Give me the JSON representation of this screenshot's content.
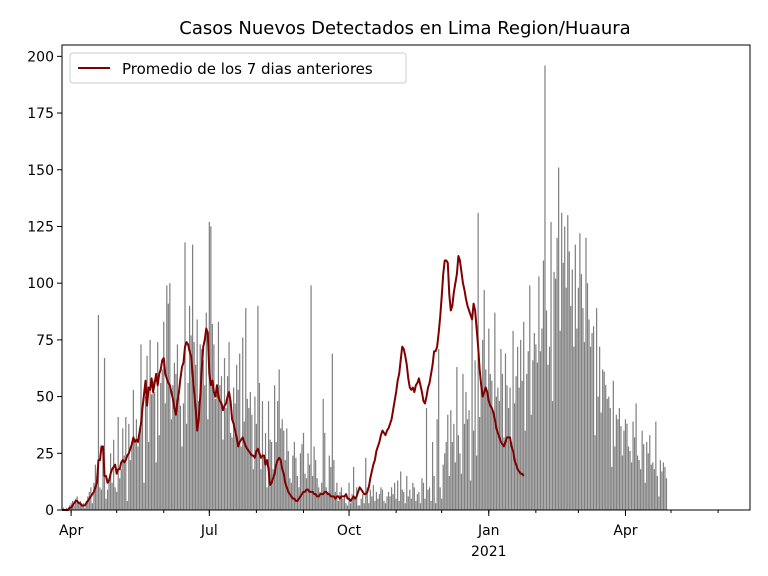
{
  "chart_data": {
    "type": "bar",
    "title": "Casos Nuevos Detectados en Lima Region/Huaura",
    "xlabel": "",
    "ylabel": "",
    "x_range": [
      "2020-03-26",
      "2021-06-22"
    ],
    "ylim": [
      0,
      205
    ],
    "yticks": [
      0,
      25,
      50,
      75,
      100,
      125,
      150,
      175,
      200
    ],
    "xticks": [
      {
        "date": "2020-04-01",
        "label": "Apr",
        "sublabel": ""
      },
      {
        "date": "2020-07-01",
        "label": "Jul",
        "sublabel": ""
      },
      {
        "date": "2020-10-01",
        "label": "Oct",
        "sublabel": ""
      },
      {
        "date": "2021-01-01",
        "label": "Jan",
        "sublabel": "2021"
      },
      {
        "date": "2021-04-01",
        "label": "Apr",
        "sublabel": ""
      }
    ],
    "grid": false,
    "legend": {
      "position": "top-left",
      "entries": [
        "Promedio de los 7 dias anteriores"
      ]
    },
    "colors": {
      "bars": "#808080",
      "line": "#800000"
    },
    "series": [
      {
        "kind": "bar",
        "start_date": "2020-03-26",
        "values": [
          0,
          1,
          0,
          1,
          0,
          2,
          3,
          4,
          2,
          5,
          6,
          3,
          4,
          2,
          3,
          1,
          4,
          6,
          8,
          10,
          3,
          12,
          20,
          15,
          86,
          10,
          9,
          28,
          67,
          5,
          9,
          14,
          25,
          12,
          31,
          10,
          8,
          41,
          14,
          18,
          36,
          24,
          41,
          4,
          38,
          22,
          30,
          53,
          31,
          40,
          28,
          36,
          73,
          46,
          12,
          50,
          68,
          30,
          75,
          51,
          57,
          52,
          21,
          74,
          33,
          56,
          62,
          83,
          47,
          99,
          91,
          100,
          40,
          55,
          65,
          60,
          73,
          50,
          46,
          28,
          47,
          118,
          38,
          56,
          90,
          77,
          117,
          74,
          64,
          84,
          48,
          73,
          71,
          66,
          55,
          87,
          40,
          127,
          125,
          82,
          73,
          49,
          51,
          83,
          55,
          59,
          31,
          67,
          45,
          59,
          74,
          34,
          32,
          54,
          47,
          64,
          53,
          69,
          28,
          76,
          39,
          89,
          49,
          45,
          52,
          42,
          18,
          50,
          38,
          90,
          56,
          18,
          48,
          23,
          34,
          10,
          48,
          31,
          30,
          18,
          55,
          30,
          48,
          62,
          36,
          40,
          35,
          22,
          36,
          26,
          14,
          12,
          24,
          30,
          23,
          15,
          10,
          25,
          29,
          34,
          16,
          14,
          25,
          20,
          99,
          15,
          28,
          22,
          14,
          10,
          8,
          12,
          49,
          34,
          10,
          8,
          24,
          19,
          69,
          22,
          8,
          12,
          4,
          8,
          10,
          5,
          6,
          3,
          2,
          12,
          3,
          7,
          19,
          5,
          10,
          2,
          2,
          5,
          7,
          3,
          23,
          10,
          3,
          9,
          6,
          11,
          4,
          8,
          5,
          7,
          10,
          9,
          4,
          3,
          6,
          8,
          6,
          10,
          7,
          12,
          5,
          13,
          4,
          17,
          9,
          8,
          3,
          15,
          6,
          9,
          5,
          12,
          10,
          4,
          7,
          8,
          3,
          14,
          12,
          5,
          45,
          9,
          10,
          4,
          30,
          15,
          3,
          40,
          71,
          10,
          5,
          20,
          25,
          30,
          42,
          15,
          44,
          30,
          38,
          21,
          63,
          33,
          25,
          16,
          60,
          38,
          52,
          40,
          44,
          13,
          84,
          35,
          66,
          24,
          131,
          41,
          56,
          75,
          97,
          62,
          52,
          80,
          60,
          57,
          44,
          87,
          50,
          54,
          48,
          71,
          60,
          32,
          69,
          55,
          45,
          54,
          30,
          79,
          47,
          59,
          72,
          54,
          75,
          57,
          83,
          35,
          60,
          70,
          99,
          42,
          66,
          78,
          73,
          65,
          103,
          70,
          80,
          110,
          196,
          88,
          64,
          72,
          127,
          48,
          105,
          102,
          120,
          151,
          79,
          131,
          109,
          125,
          98,
          130,
          114,
          90,
          106,
          72,
          117,
          80,
          98,
          122,
          104,
          89,
          74,
          120,
          100,
          84,
          72,
          78,
          81,
          33,
          89,
          50,
          72,
          43,
          62,
          61,
          55,
          49,
          50,
          45,
          19,
          57,
          28,
          42,
          40,
          45,
          37,
          24,
          35,
          40,
          38,
          28,
          26,
          21,
          39,
          32,
          47,
          24,
          22,
          18,
          35,
          29,
          12,
          30,
          25,
          33,
          20,
          21,
          18,
          39,
          15,
          6,
          22,
          17,
          21,
          19,
          14
        ]
      },
      {
        "kind": "line",
        "name": "Promedio de los 7 dias anteriores",
        "start_date": "2020-03-26",
        "values": [
          0,
          0,
          0,
          0,
          0,
          1,
          1,
          2,
          3,
          4,
          4,
          3,
          3,
          2,
          2,
          2,
          3,
          4,
          5,
          6,
          7,
          8,
          10,
          12,
          22,
          22,
          28,
          28,
          15,
          15,
          12,
          13,
          16,
          18,
          19,
          20,
          16,
          18,
          18,
          21,
          22,
          21,
          22,
          24,
          25,
          27,
          29,
          32,
          30,
          31,
          30,
          34,
          38,
          45,
          51,
          57,
          46,
          54,
          53,
          58,
          52,
          56,
          60,
          55,
          60,
          62,
          66,
          67,
          60,
          58,
          56,
          55,
          52,
          49,
          45,
          42,
          48,
          52,
          58,
          63,
          65,
          72,
          74,
          73,
          70,
          68,
          60,
          52,
          45,
          35,
          40,
          50,
          62,
          72,
          75,
          80,
          78,
          60,
          55,
          57,
          52,
          50,
          55,
          50,
          48,
          47,
          44,
          46,
          47,
          50,
          52,
          48,
          40,
          38,
          35,
          32,
          28,
          30,
          31,
          32,
          30,
          28,
          27,
          26,
          25,
          24,
          24,
          23,
          26,
          27,
          25,
          23,
          24,
          24,
          20,
          22,
          18,
          11,
          12,
          14,
          16,
          20,
          22,
          23,
          22,
          18,
          16,
          12,
          10,
          8,
          7,
          6,
          5,
          5,
          4,
          4,
          5,
          6,
          7,
          8,
          8,
          9,
          9,
          8,
          8,
          8,
          7,
          7,
          6,
          6,
          7,
          7,
          7,
          8,
          8,
          7,
          7,
          6,
          6,
          6,
          5,
          6,
          6,
          5,
          6,
          6,
          6,
          7,
          5,
          5,
          4,
          5,
          6,
          5,
          6,
          8,
          10,
          9,
          8,
          7,
          7,
          8,
          10,
          14,
          17,
          20,
          22,
          26,
          28,
          30,
          33,
          35,
          34,
          33,
          35,
          36,
          38,
          40,
          44,
          48,
          52,
          57,
          60,
          66,
          72,
          71,
          68,
          64,
          58,
          54,
          53,
          54,
          52,
          55,
          56,
          58,
          55,
          52,
          48,
          47,
          50,
          54,
          56,
          60,
          64,
          70,
          70,
          72,
          78,
          85,
          94,
          104,
          110,
          110,
          109,
          95,
          88,
          90,
          96,
          100,
          104,
          112,
          110,
          105,
          100,
          97,
          93,
          90,
          88,
          86,
          84,
          91,
          88,
          80,
          72,
          62,
          55,
          50,
          52,
          54,
          52,
          48,
          46,
          45,
          43,
          40,
          36,
          34,
          32,
          30,
          29,
          28,
          30,
          32,
          32,
          32,
          28,
          26,
          22,
          20,
          18,
          17,
          16,
          16,
          15
        ]
      }
    ]
  }
}
